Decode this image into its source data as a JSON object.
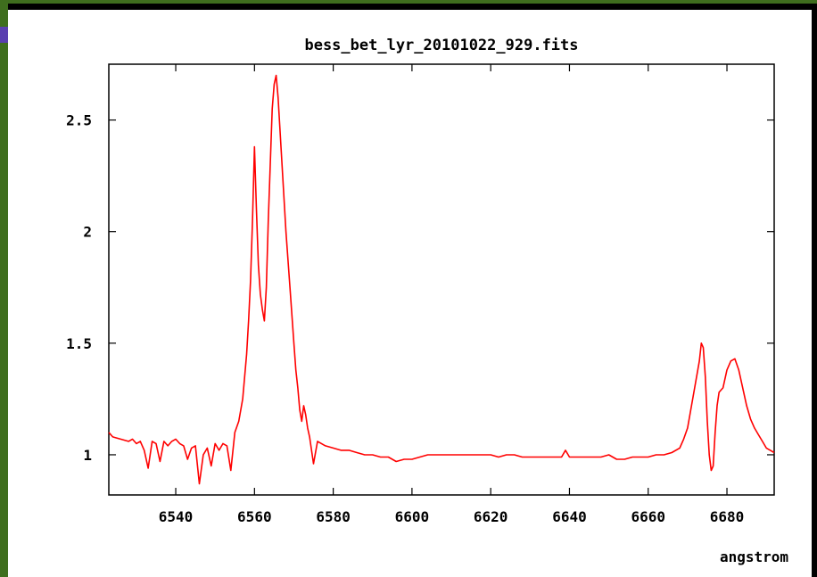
{
  "window": {
    "accent_color": "#3f6e1e",
    "badge_color": "#5a3fb0",
    "background_color": "#ffffff"
  },
  "chart_data": {
    "type": "line",
    "title": "bess_bet_lyr_20101022_929.fits",
    "xlabel": "angstrom",
    "ylabel": "",
    "xlim": [
      6523,
      6692
    ],
    "ylim": [
      0.82,
      2.75
    ],
    "x_ticks": [
      6540,
      6560,
      6580,
      6600,
      6620,
      6640,
      6660,
      6680
    ],
    "y_ticks": [
      1,
      1.5,
      2,
      2.5
    ],
    "y_tick_labels": [
      "1",
      "1.5",
      "2",
      "2.5"
    ],
    "grid": false,
    "legend": "none",
    "series": [
      {
        "color": "#ff0000",
        "x": [
          6523,
          6524,
          6526,
          6528,
          6529,
          6530,
          6531,
          6532,
          6533,
          6534,
          6535,
          6536,
          6537,
          6538,
          6539,
          6540,
          6541,
          6542,
          6543,
          6544,
          6545,
          6546,
          6547,
          6548,
          6549,
          6550,
          6551,
          6552,
          6553,
          6554,
          6555,
          6556,
          6557,
          6557.5,
          6558,
          6558.5,
          6559,
          6559.5,
          6560,
          6560.5,
          6561,
          6561.5,
          6562,
          6562.5,
          6563,
          6563.5,
          6564,
          6564.5,
          6565,
          6565.5,
          6566,
          6567,
          6568,
          6569,
          6570,
          6570.5,
          6571,
          6571.5,
          6572,
          6572.5,
          6573,
          6573.5,
          6574,
          6575,
          6576,
          6577,
          6578,
          6580,
          6582,
          6584,
          6586,
          6588,
          6590,
          6592,
          6594,
          6596,
          6598,
          6600,
          6602,
          6604,
          6606,
          6608,
          6610,
          6612,
          6614,
          6616,
          6618,
          6620,
          6622,
          6624,
          6626,
          6628,
          6630,
          6632,
          6634,
          6636,
          6638,
          6639,
          6640,
          6642,
          6644,
          6646,
          6648,
          6650,
          6651,
          6652,
          6654,
          6656,
          6658,
          6660,
          6662,
          6664,
          6666,
          6668,
          6669,
          6670,
          6671,
          6672,
          6673,
          6673.5,
          6674,
          6674.5,
          6675,
          6675.5,
          6676,
          6676.5,
          6677,
          6677.5,
          6678,
          6679,
          6680,
          6681,
          6682,
          6683,
          6684,
          6685,
          6686,
          6687,
          6688,
          6689,
          6690,
          6691,
          6692
        ],
        "values": [
          1.1,
          1.08,
          1.07,
          1.06,
          1.07,
          1.05,
          1.06,
          1.02,
          0.94,
          1.06,
          1.05,
          0.97,
          1.06,
          1.04,
          1.06,
          1.07,
          1.05,
          1.04,
          0.98,
          1.03,
          1.04,
          0.87,
          1.0,
          1.03,
          0.95,
          1.05,
          1.02,
          1.05,
          1.04,
          0.93,
          1.1,
          1.15,
          1.25,
          1.35,
          1.45,
          1.6,
          1.78,
          2.05,
          2.38,
          2.1,
          1.85,
          1.72,
          1.65,
          1.6,
          1.75,
          2.05,
          2.3,
          2.55,
          2.66,
          2.7,
          2.6,
          2.3,
          2.0,
          1.75,
          1.5,
          1.38,
          1.3,
          1.2,
          1.15,
          1.22,
          1.18,
          1.12,
          1.08,
          0.96,
          1.06,
          1.05,
          1.04,
          1.03,
          1.02,
          1.02,
          1.01,
          1.0,
          1.0,
          0.99,
          0.99,
          0.97,
          0.98,
          0.98,
          0.99,
          1.0,
          1.0,
          1.0,
          1.0,
          1.0,
          1.0,
          1.0,
          1.0,
          1.0,
          0.99,
          1.0,
          1.0,
          0.99,
          0.99,
          0.99,
          0.99,
          0.99,
          0.99,
          1.02,
          0.99,
          0.99,
          0.99,
          0.99,
          0.99,
          1.0,
          0.99,
          0.98,
          0.98,
          0.99,
          0.99,
          0.99,
          1.0,
          1.0,
          1.01,
          1.03,
          1.07,
          1.12,
          1.22,
          1.32,
          1.42,
          1.5,
          1.48,
          1.35,
          1.15,
          1.0,
          0.93,
          0.95,
          1.1,
          1.22,
          1.28,
          1.3,
          1.38,
          1.42,
          1.43,
          1.38,
          1.3,
          1.22,
          1.16,
          1.12,
          1.09,
          1.06,
          1.03,
          1.02,
          1.01
        ]
      }
    ]
  }
}
